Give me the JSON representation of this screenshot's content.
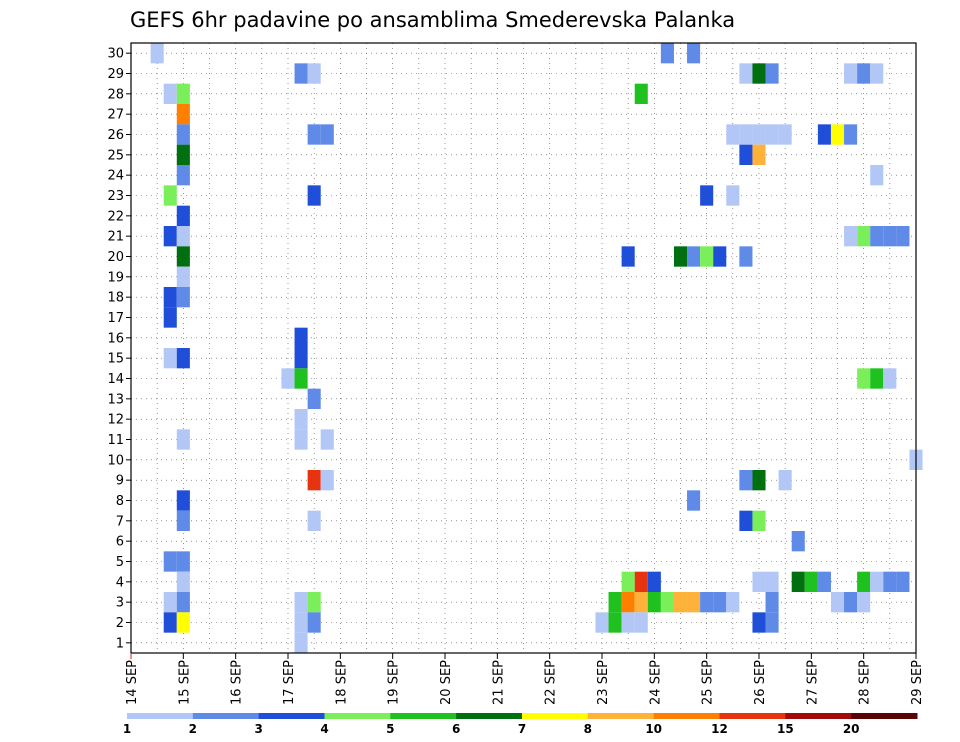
{
  "chart_data": {
    "type": "heatmap",
    "title": "GEFS 6hr padavine po ansamblima Smederevska Palanka",
    "y_ticks": [
      "1",
      "2",
      "3",
      "4",
      "5",
      "6",
      "7",
      "8",
      "9",
      "10",
      "11",
      "12",
      "13",
      "14",
      "15",
      "16",
      "17",
      "18",
      "19",
      "20",
      "21",
      "22",
      "23",
      "24",
      "25",
      "26",
      "27",
      "28",
      "29",
      "30"
    ],
    "x_ticks": [
      "14 SEP",
      "15 SEP",
      "16 SEP",
      "17 SEP",
      "18 SEP",
      "19 SEP",
      "20 SEP",
      "21 SEP",
      "22 SEP",
      "23 SEP",
      "24 SEP",
      "25 SEP",
      "26 SEP",
      "27 SEP",
      "28 SEP",
      "29 SEP"
    ],
    "x_range_days": [
      14,
      29
    ],
    "y_range": [
      0.5,
      30.5
    ],
    "time_step_hours": 6,
    "grid": "dotted",
    "colorbar": {
      "colors": [
        "#b3c7f7",
        "#5f8ae8",
        "#1f4fd8",
        "#7bef5a",
        "#1fc11f",
        "#006f0f",
        "#ffff00",
        "#ffb23a",
        "#ff7f00",
        "#e8330f",
        "#a20a0a",
        "#5a0505"
      ],
      "labels": [
        "1",
        "2",
        "3",
        "4",
        "5",
        "6",
        "7",
        "8",
        "10",
        "12",
        "15",
        "20"
      ]
    },
    "cells": [
      [
        14.5,
        30,
        1
      ],
      [
        24.25,
        30,
        2
      ],
      [
        24.75,
        30,
        2
      ],
      [
        17.25,
        29,
        2
      ],
      [
        17.5,
        29,
        1
      ],
      [
        25.75,
        29,
        1
      ],
      [
        26.0,
        29,
        6
      ],
      [
        26.25,
        29,
        2
      ],
      [
        27.75,
        29,
        1
      ],
      [
        28.0,
        29,
        2
      ],
      [
        28.25,
        29,
        1
      ],
      [
        14.75,
        28,
        1
      ],
      [
        15.0,
        28,
        4
      ],
      [
        23.75,
        28,
        5
      ],
      [
        15.0,
        27,
        9
      ],
      [
        15.0,
        26,
        2
      ],
      [
        17.5,
        26,
        2
      ],
      [
        17.75,
        26,
        2
      ],
      [
        25.5,
        26,
        1
      ],
      [
        25.75,
        26,
        1
      ],
      [
        26.0,
        26,
        1
      ],
      [
        26.25,
        26,
        1
      ],
      [
        26.5,
        26,
        1
      ],
      [
        27.25,
        26,
        3
      ],
      [
        27.5,
        26,
        7
      ],
      [
        27.75,
        26,
        2
      ],
      [
        15.0,
        25,
        6
      ],
      [
        25.75,
        25,
        3
      ],
      [
        26.0,
        25,
        8
      ],
      [
        15.0,
        24,
        2
      ],
      [
        28.25,
        24,
        1
      ],
      [
        14.75,
        23,
        4
      ],
      [
        17.5,
        23,
        3
      ],
      [
        25.0,
        23,
        3
      ],
      [
        25.5,
        23,
        1
      ],
      [
        15.0,
        22,
        3
      ],
      [
        14.75,
        21,
        3
      ],
      [
        15.0,
        21,
        1
      ],
      [
        27.75,
        21,
        1
      ],
      [
        28.0,
        21,
        4
      ],
      [
        28.25,
        21,
        2
      ],
      [
        28.5,
        21,
        2
      ],
      [
        28.75,
        21,
        2
      ],
      [
        15.0,
        20,
        6
      ],
      [
        23.5,
        20,
        3
      ],
      [
        24.5,
        20,
        6
      ],
      [
        24.75,
        20,
        2
      ],
      [
        25.0,
        20,
        4
      ],
      [
        25.25,
        20,
        3
      ],
      [
        25.75,
        20,
        2
      ],
      [
        15.0,
        19,
        1
      ],
      [
        14.75,
        18,
        3
      ],
      [
        15.0,
        18,
        2
      ],
      [
        14.75,
        17,
        3
      ],
      [
        17.25,
        16,
        3
      ],
      [
        14.75,
        15,
        1
      ],
      [
        15.0,
        15,
        3
      ],
      [
        17.25,
        15,
        3
      ],
      [
        17.0,
        14,
        1
      ],
      [
        17.25,
        14,
        5
      ],
      [
        28.0,
        14,
        4
      ],
      [
        28.25,
        14,
        5
      ],
      [
        28.5,
        14,
        1
      ],
      [
        17.5,
        13,
        2
      ],
      [
        17.25,
        12,
        1
      ],
      [
        15.0,
        11,
        1
      ],
      [
        17.25,
        11,
        1
      ],
      [
        17.75,
        11,
        1
      ],
      [
        29.0,
        10,
        1
      ],
      [
        17.5,
        9,
        10
      ],
      [
        17.75,
        9,
        1
      ],
      [
        25.75,
        9,
        2
      ],
      [
        26.0,
        9,
        6
      ],
      [
        26.5,
        9,
        1
      ],
      [
        15.0,
        8,
        3
      ],
      [
        24.75,
        8,
        2
      ],
      [
        15.0,
        7,
        2
      ],
      [
        17.5,
        7,
        1
      ],
      [
        25.75,
        7,
        3
      ],
      [
        26.0,
        7,
        4
      ],
      [
        26.75,
        6,
        2
      ],
      [
        14.75,
        5,
        2
      ],
      [
        15.0,
        5,
        2
      ],
      [
        15.0,
        4,
        1
      ],
      [
        23.5,
        4,
        4
      ],
      [
        23.75,
        4,
        10
      ],
      [
        24.0,
        4,
        3
      ],
      [
        26.0,
        4,
        1
      ],
      [
        26.25,
        4,
        1
      ],
      [
        26.75,
        4,
        6
      ],
      [
        27.0,
        4,
        5
      ],
      [
        27.25,
        4,
        2
      ],
      [
        28.0,
        4,
        5
      ],
      [
        28.25,
        4,
        1
      ],
      [
        28.5,
        4,
        2
      ],
      [
        28.75,
        4,
        2
      ],
      [
        14.75,
        3,
        1
      ],
      [
        15.0,
        3,
        2
      ],
      [
        17.25,
        3,
        1
      ],
      [
        17.5,
        3,
        4
      ],
      [
        23.25,
        3,
        5
      ],
      [
        23.5,
        3,
        9
      ],
      [
        23.75,
        3,
        8
      ],
      [
        24.0,
        3,
        5
      ],
      [
        24.25,
        3,
        4
      ],
      [
        24.5,
        3,
        8
      ],
      [
        24.75,
        3,
        8
      ],
      [
        25.0,
        3,
        2
      ],
      [
        25.25,
        3,
        2
      ],
      [
        25.5,
        3,
        1
      ],
      [
        26.25,
        3,
        2
      ],
      [
        27.5,
        3,
        1
      ],
      [
        27.75,
        3,
        2
      ],
      [
        28.0,
        3,
        1
      ],
      [
        14.75,
        2,
        3
      ],
      [
        15.0,
        2,
        7
      ],
      [
        17.25,
        2,
        1
      ],
      [
        17.5,
        2,
        2
      ],
      [
        23.0,
        2,
        1
      ],
      [
        23.25,
        2,
        5
      ],
      [
        23.5,
        2,
        1
      ],
      [
        23.75,
        2,
        1
      ],
      [
        26.0,
        2,
        3
      ],
      [
        26.25,
        2,
        2
      ],
      [
        17.25,
        1,
        1
      ]
    ]
  }
}
